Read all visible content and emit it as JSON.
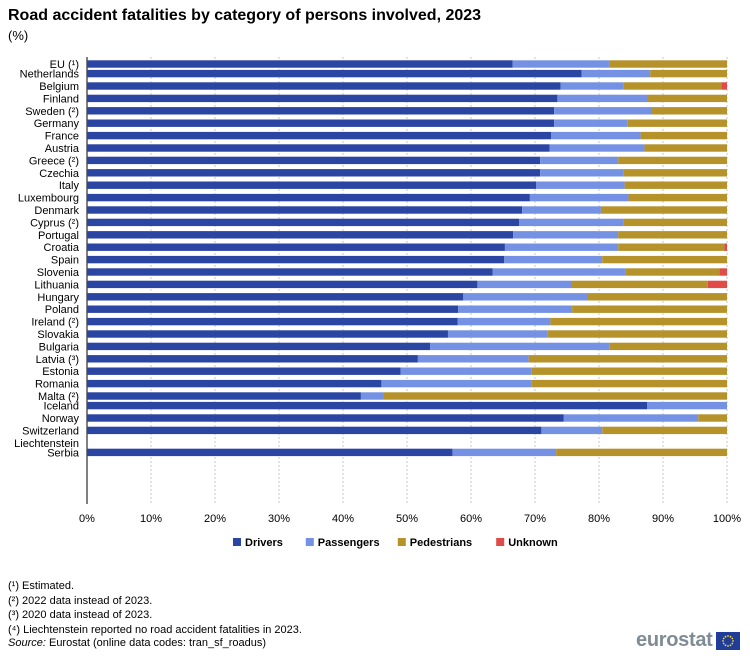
{
  "title": "Road accident fatalities by category of persons involved, 2023",
  "subtitle": "(%)",
  "colors": {
    "Drivers": "#2b45a3",
    "Passengers": "#7591e3",
    "Pedestrians": "#b5922a",
    "Unknown": "#e04b48",
    "grid": "#c8c8c8"
  },
  "chart_data": {
    "type": "bar",
    "orientation": "horizontal",
    "stacked": true,
    "grid": true,
    "legend": "bottom",
    "xlim": [
      0,
      100
    ],
    "x_ticks": [
      "0%",
      "10%",
      "20%",
      "30%",
      "40%",
      "50%",
      "60%",
      "70%",
      "80%",
      "90%",
      "100%"
    ],
    "categories": [
      "EU (¹)",
      "Netherlands",
      "Belgium",
      "Finland",
      "Sweden (²)",
      "Germany",
      "France",
      "Austria",
      "Greece (²)",
      "Czechia",
      "Italy",
      "Luxembourg",
      "Denmark",
      "Cyprus (²)",
      "Portugal",
      "Croatia",
      "Spain",
      "Slovenia",
      "Lithuania",
      "Hungary",
      "Poland",
      "Ireland (²)",
      "Slovakia",
      "Bulgaria",
      "Latvia (³)",
      "Estonia",
      "Romania",
      "Malta (²)",
      "Iceland",
      "Norway",
      "Switzerland",
      "Liechtenstein",
      "Serbia"
    ],
    "groups": [
      1,
      27,
      4,
      1
    ],
    "series": [
      {
        "name": "Drivers",
        "values": [
          66.5,
          77.3,
          74.0,
          73.5,
          73.0,
          73.0,
          72.5,
          72.3,
          70.8,
          70.8,
          70.2,
          69.2,
          68.0,
          67.5,
          66.6,
          65.3,
          65.2,
          63.4,
          61.0,
          58.8,
          58.0,
          57.9,
          56.4,
          53.6,
          51.7,
          49.0,
          46.0,
          42.8,
          87.5,
          74.5,
          71.0,
          0,
          57.1
        ]
      },
      {
        "name": "Passengers",
        "values": [
          15.2,
          10.7,
          9.8,
          14.0,
          15.2,
          11.5,
          14.0,
          14.8,
          12.2,
          13.0,
          13.8,
          15.4,
          12.3,
          16.3,
          16.4,
          17.7,
          15.3,
          20.8,
          14.7,
          19.4,
          17.8,
          14.5,
          15.6,
          28.0,
          17.3,
          20.5,
          23.5,
          3.6,
          12.5,
          21.0,
          9.5,
          0,
          16.2
        ]
      },
      {
        "name": "Pedestrians",
        "values": [
          18.3,
          12.0,
          15.3,
          12.5,
          11.8,
          15.5,
          13.5,
          12.9,
          17.0,
          16.2,
          16.0,
          15.4,
          19.7,
          16.2,
          17.0,
          16.6,
          19.5,
          14.6,
          21.3,
          21.8,
          24.2,
          27.6,
          28.0,
          18.4,
          31.0,
          30.5,
          30.5,
          53.6,
          0,
          4.5,
          19.5,
          0,
          26.7
        ]
      },
      {
        "name": "Unknown",
        "values": [
          0,
          0,
          0.9,
          0,
          0,
          0,
          0,
          0,
          0,
          0,
          0,
          0,
          0,
          0,
          0,
          0.4,
          0,
          1.2,
          3.0,
          0,
          0,
          0,
          0,
          0,
          0,
          0,
          0,
          0,
          0,
          0,
          0,
          0,
          0
        ]
      }
    ]
  },
  "footnotes": [
    "(¹) Estimated.",
    "(²) 2022 data instead of 2023.",
    "(³) 2020 data instead of 2023.",
    "(⁴) Liechtenstein reported no road accident fatalities in 2023."
  ],
  "source": {
    "label": "Source:",
    "text": " Eurostat (online data codes: tran_sf_roadus)"
  },
  "logo": {
    "text": "eurostat",
    "icon": "eu-flag-icon"
  }
}
